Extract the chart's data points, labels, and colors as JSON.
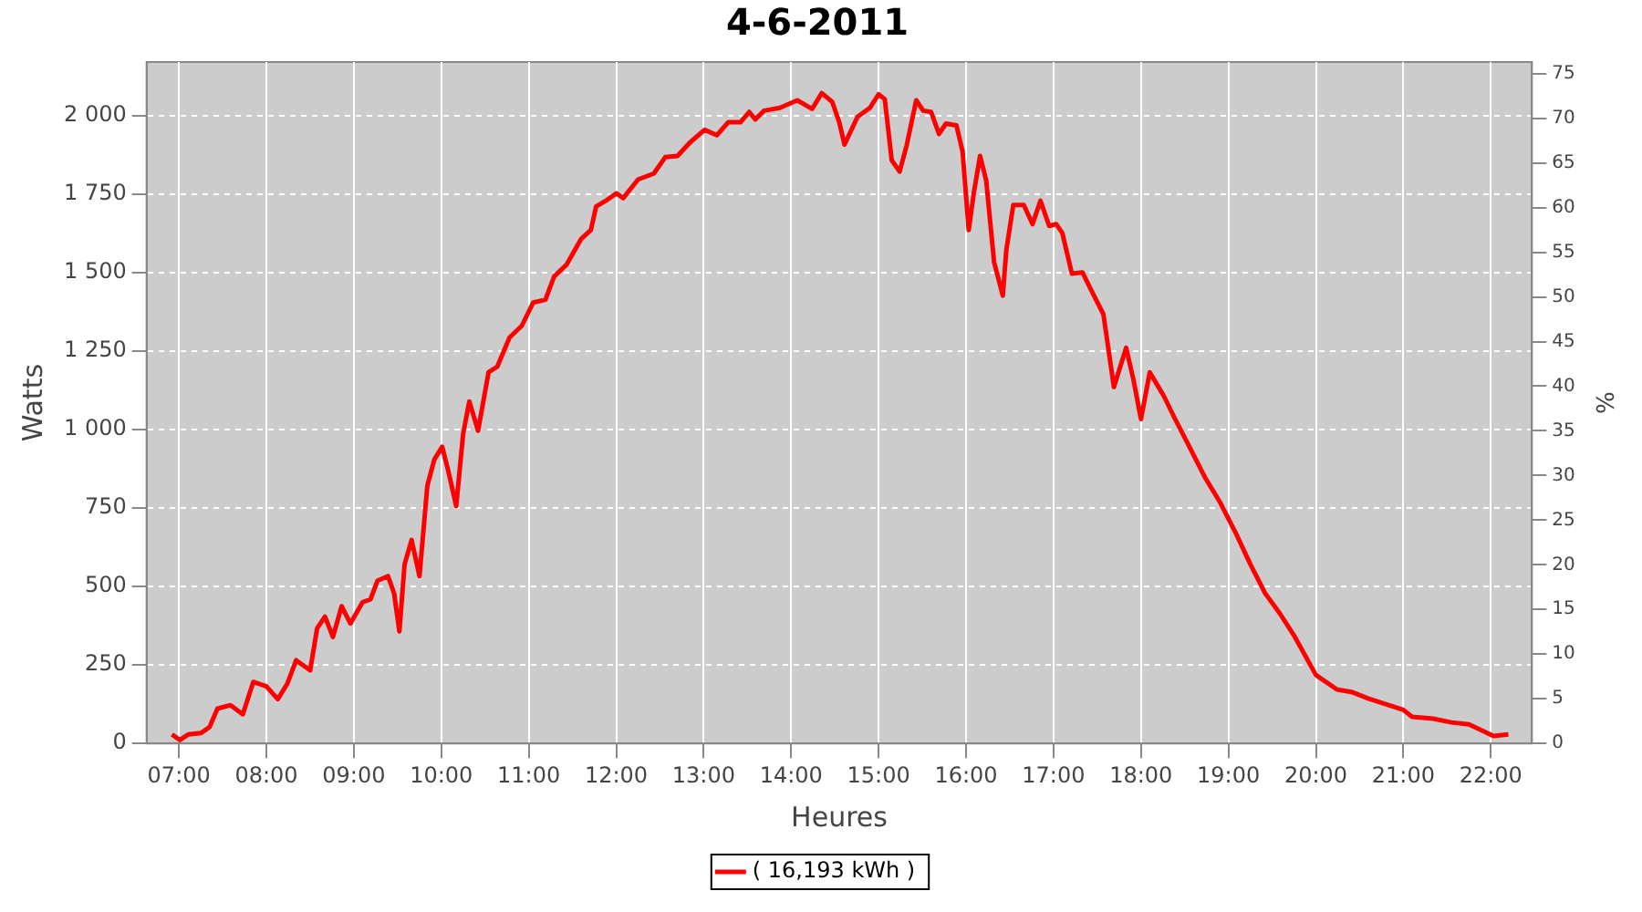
{
  "chart_data": {
    "type": "line",
    "title": "4-6-2011",
    "xlabel": "Heures",
    "ylabel": "Watts",
    "y2label": "%",
    "xlim": [
      6.63,
      22.47
    ],
    "xticks": [
      {
        "value": 7,
        "label": "07:00"
      },
      {
        "value": 8,
        "label": "08:00"
      },
      {
        "value": 9,
        "label": "09:00"
      },
      {
        "value": 10,
        "label": "10:00"
      },
      {
        "value": 11,
        "label": "11:00"
      },
      {
        "value": 12,
        "label": "12:00"
      },
      {
        "value": 13,
        "label": "13:00"
      },
      {
        "value": 14,
        "label": "14:00"
      },
      {
        "value": 15,
        "label": "15:00"
      },
      {
        "value": 16,
        "label": "16:00"
      },
      {
        "value": 17,
        "label": "17:00"
      },
      {
        "value": 18,
        "label": "18:00"
      },
      {
        "value": 19,
        "label": "19:00"
      },
      {
        "value": 20,
        "label": "20:00"
      },
      {
        "value": 21,
        "label": "21:00"
      },
      {
        "value": 22,
        "label": "22:00"
      }
    ],
    "ylim": [
      0,
      2170
    ],
    "yticks": [
      0,
      250,
      500,
      750,
      {
        "value": 1000,
        "label": "1 000"
      },
      {
        "value": 1250,
        "label": "1 250"
      },
      {
        "value": 1500,
        "label": "1 500"
      },
      {
        "value": 1750,
        "label": "1 750"
      },
      {
        "value": 2000,
        "label": "2 000"
      }
    ],
    "y2lim": [
      0,
      76.3
    ],
    "y2ticks": [
      0,
      5,
      10,
      15,
      20,
      25,
      30,
      35,
      40,
      45,
      50,
      55,
      60,
      65,
      70,
      75
    ],
    "grid": true,
    "legend": "bottom",
    "marker": "none",
    "line_style": "solid",
    "x": [
      6.92,
      7.01,
      7.11,
      7.25,
      7.35,
      7.44,
      7.59,
      7.73,
      7.85,
      8.0,
      8.13,
      8.24,
      8.34,
      8.5,
      8.58,
      8.67,
      8.76,
      8.86,
      8.96,
      9.1,
      9.19,
      9.27,
      9.39,
      9.46,
      9.52,
      9.58,
      9.66,
      9.75,
      9.84,
      9.92,
      10.01,
      10.08,
      10.17,
      10.25,
      10.32,
      10.42,
      10.54,
      10.64,
      10.78,
      10.92,
      11.05,
      11.19,
      11.29,
      11.43,
      11.6,
      11.71,
      11.77,
      11.88,
      12.0,
      12.08,
      12.25,
      12.43,
      12.56,
      12.7,
      12.84,
      13.01,
      13.15,
      13.28,
      13.42,
      13.52,
      13.59,
      13.69,
      13.87,
      14.07,
      14.24,
      14.35,
      14.47,
      14.55,
      14.61,
      14.76,
      14.9,
      15.0,
      15.07,
      15.15,
      15.24,
      15.32,
      15.43,
      15.51,
      15.6,
      15.69,
      15.77,
      15.89,
      15.96,
      16.03,
      16.09,
      16.16,
      16.23,
      16.32,
      16.42,
      16.46,
      16.54,
      16.66,
      16.76,
      16.85,
      16.95,
      17.03,
      17.1,
      17.21,
      17.33,
      17.47,
      17.57,
      17.69,
      17.83,
      17.91,
      18.0,
      18.1,
      18.26,
      18.39,
      18.56,
      18.73,
      18.91,
      19.08,
      19.25,
      19.42,
      19.59,
      19.76,
      20.0,
      20.24,
      20.42,
      20.59,
      20.79,
      21.0,
      21.1,
      21.34,
      21.55,
      21.75,
      22.03,
      22.2
    ],
    "series": [
      {
        "name": "( 16,193 kWh )",
        "color": "#ff0000",
        "values": [
          29,
          11,
          29,
          33,
          52,
          111,
          122,
          93,
          196,
          182,
          141,
          191,
          265,
          233,
          367,
          404,
          339,
          437,
          382,
          450,
          459,
          518,
          533,
          478,
          357,
          571,
          648,
          533,
          821,
          904,
          945,
          867,
          756,
          987,
          1089,
          996,
          1182,
          1200,
          1293,
          1330,
          1404,
          1413,
          1487,
          1524,
          1607,
          1635,
          1710,
          1728,
          1752,
          1737,
          1796,
          1815,
          1867,
          1871,
          1913,
          1954,
          1937,
          1978,
          1978,
          2011,
          1987,
          2015,
          2024,
          2048,
          2021,
          2071,
          2043,
          1978,
          1907,
          1996,
          2024,
          2067,
          2052,
          1857,
          1821,
          1904,
          2048,
          2015,
          2011,
          1941,
          1974,
          1968,
          1885,
          1635,
          1756,
          1871,
          1793,
          1533,
          1426,
          1571,
          1715,
          1715,
          1654,
          1728,
          1648,
          1654,
          1626,
          1496,
          1500,
          1422,
          1367,
          1135,
          1260,
          1163,
          1033,
          1182,
          1107,
          1033,
          941,
          848,
          765,
          672,
          571,
          478,
          413,
          339,
          218,
          172,
          163,
          144,
          126,
          107,
          85,
          79,
          67,
          61,
          24,
          29
        ]
      }
    ]
  }
}
